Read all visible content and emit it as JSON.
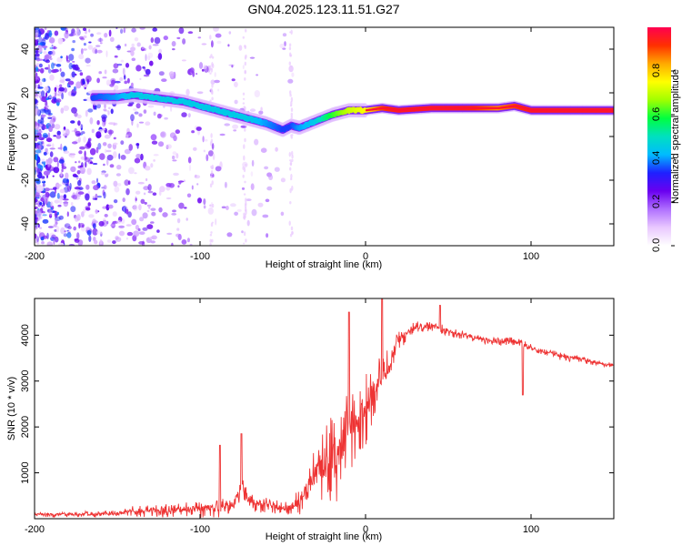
{
  "title": "GN04.2025.123.11.51.G27",
  "chart_data": [
    {
      "type": "heatmap",
      "xlabel": "Height of straight line (km)",
      "ylabel": "Frequency (Hz)",
      "xlim": [
        -200,
        150
      ],
      "ylim": [
        -50,
        50
      ],
      "x_ticks": [
        -200,
        -100,
        0,
        100
      ],
      "y_ticks": [
        -40,
        -20,
        0,
        20,
        40
      ],
      "colorbar": {
        "label": "Normalized spectral amplitude",
        "range": [
          0.0,
          1.0
        ],
        "ticks": [
          "0.0",
          "0.2",
          "0.4",
          "0.6",
          "0.8"
        ],
        "colors": [
          "#ffffff",
          "#e9c8ff",
          "#b070ff",
          "#6a00f0",
          "#1e20ff",
          "#00bbff",
          "#00e0c0",
          "#00ff40",
          "#a0ff00",
          "#ffff00",
          "#ffaa00",
          "#ff3000",
          "#ff0050"
        ]
      },
      "ridge": {
        "x": [
          -165,
          -150,
          -140,
          -130,
          -120,
          -110,
          -100,
          -90,
          -80,
          -70,
          -60,
          -50,
          -45,
          -40,
          -30,
          -20,
          -10,
          0,
          10,
          20,
          40,
          60,
          80,
          90,
          100,
          120,
          150
        ],
        "y": [
          18,
          18,
          19,
          18,
          17,
          16,
          14,
          12,
          10,
          8,
          6,
          3,
          5,
          4,
          7,
          10,
          12,
          12,
          13,
          12,
          13,
          13,
          13,
          14,
          12,
          12,
          12
        ],
        "amplitude": [
          0.35,
          0.4,
          0.45,
          0.45,
          0.45,
          0.45,
          0.45,
          0.45,
          0.45,
          0.45,
          0.4,
          0.35,
          0.35,
          0.4,
          0.45,
          0.6,
          0.7,
          0.75,
          0.9,
          0.95,
          0.95,
          0.95,
          0.85,
          0.9,
          0.95,
          0.95,
          0.95
        ]
      }
    },
    {
      "type": "line",
      "xlabel": "Height of straight line (km)",
      "ylabel": "SNR (10 * v/v)",
      "xlim": [
        -200,
        150
      ],
      "ylim": [
        0,
        4800
      ],
      "x_ticks": [
        -200,
        -100,
        0,
        100
      ],
      "y_ticks": [
        1000,
        2000,
        3000,
        4000
      ],
      "series": [
        {
          "color": "#ee3333",
          "envelope_x": [
            -200,
            -180,
            -160,
            -150,
            -140,
            -130,
            -120,
            -110,
            -100,
            -90,
            -80,
            -75,
            -70,
            -60,
            -50,
            -45,
            -40,
            -30,
            -25,
            -20,
            -15,
            -10,
            -5,
            0,
            5,
            10,
            15,
            20,
            30,
            40,
            50,
            60,
            70,
            80,
            90,
            95,
            100,
            110,
            120,
            130,
            140,
            150
          ],
          "envelope_y": [
            150,
            150,
            170,
            180,
            280,
            300,
            320,
            350,
            380,
            420,
            500,
            1000,
            550,
            500,
            350,
            400,
            700,
            1600,
            2000,
            2300,
            2400,
            2900,
            3000,
            3200,
            3500,
            3600,
            3800,
            4100,
            4300,
            4300,
            4200,
            4100,
            4000,
            3950,
            3950,
            3900,
            3800,
            3700,
            3600,
            3550,
            3450,
            3400
          ],
          "amplitude_y": [
            120,
            120,
            120,
            120,
            200,
            250,
            280,
            280,
            330,
            380,
            400,
            500,
            400,
            350,
            250,
            300,
            600,
            1200,
            1600,
            1800,
            1800,
            1800,
            1800,
            1500,
            1200,
            1000,
            800,
            400,
            250,
            200,
            200,
            180,
            160,
            160,
            160,
            160,
            150,
            150,
            150,
            130,
            120,
            120
          ],
          "spikes": [
            {
              "x": -88,
              "y": 1600
            },
            {
              "x": -75,
              "y": 1850
            },
            {
              "x": -10,
              "y": 4500
            },
            {
              "x": 10,
              "y": 4800
            },
            {
              "x": 45,
              "y": 4650
            },
            {
              "x": 95,
              "y": 2700
            }
          ]
        }
      ]
    }
  ]
}
